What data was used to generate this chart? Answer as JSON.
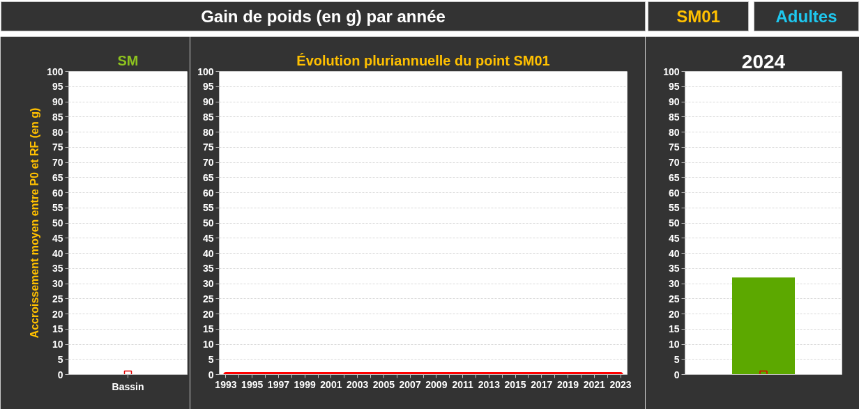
{
  "chart_data": [
    {
      "type": "other",
      "title": "Gain de poids (en g) par année",
      "annotations": [
        "SM01",
        "Adultes"
      ]
    },
    {
      "type": "scatter",
      "title": "SM",
      "ylabel": "Accroissement moyen entre P0 et RF (en g)",
      "categories": [
        "Bassin"
      ],
      "series": [
        {
          "color": "#e00000",
          "values": [
            0
          ]
        }
      ],
      "marker": "square",
      "ylim": [
        0,
        100
      ],
      "yticks": [
        0,
        5,
        10,
        15,
        20,
        25,
        30,
        35,
        40,
        45,
        50,
        55,
        60,
        65,
        70,
        75,
        80,
        85,
        90,
        95,
        100
      ],
      "grid": "y"
    },
    {
      "type": "line",
      "title": "Évolution pluriannuelle du point SM01",
      "categories": [
        "1993",
        null,
        "1995",
        null,
        "1997",
        null,
        "1999",
        null,
        "2001",
        null,
        "2003",
        null,
        "2005",
        null,
        "2007",
        null,
        "2009",
        null,
        "2011",
        null,
        "2013",
        null,
        "2015",
        null,
        "2017",
        null,
        "2019",
        null,
        "2021",
        null,
        "2023"
      ],
      "series": [
        {
          "color": "#ff0000",
          "values": [
            0,
            0,
            0,
            0,
            0,
            0,
            0,
            0,
            0,
            0,
            0,
            0,
            0,
            0,
            0,
            0,
            0,
            0,
            0,
            0,
            0,
            0,
            0,
            0,
            0,
            0,
            0,
            0,
            0,
            0,
            0
          ]
        }
      ],
      "ylim": [
        0,
        100
      ],
      "yticks": [
        0,
        5,
        10,
        15,
        20,
        25,
        30,
        35,
        40,
        45,
        50,
        55,
        60,
        65,
        70,
        75,
        80,
        85,
        90,
        95,
        100
      ],
      "grid": "y"
    },
    {
      "type": "bar",
      "title": "2024",
      "categories": [
        null
      ],
      "series": [
        {
          "color": "#5ca800",
          "values": [
            32
          ]
        },
        {
          "type": "scatter",
          "color": "#e00000",
          "values": [
            0
          ]
        }
      ],
      "marker": "square",
      "ylim": [
        0,
        100
      ],
      "yticks": [
        0,
        5,
        10,
        15,
        20,
        25,
        30,
        35,
        40,
        45,
        50,
        55,
        60,
        65,
        70,
        75,
        80,
        85,
        90,
        95,
        100
      ],
      "grid": "y",
      "tick_labels": "y"
    }
  ]
}
